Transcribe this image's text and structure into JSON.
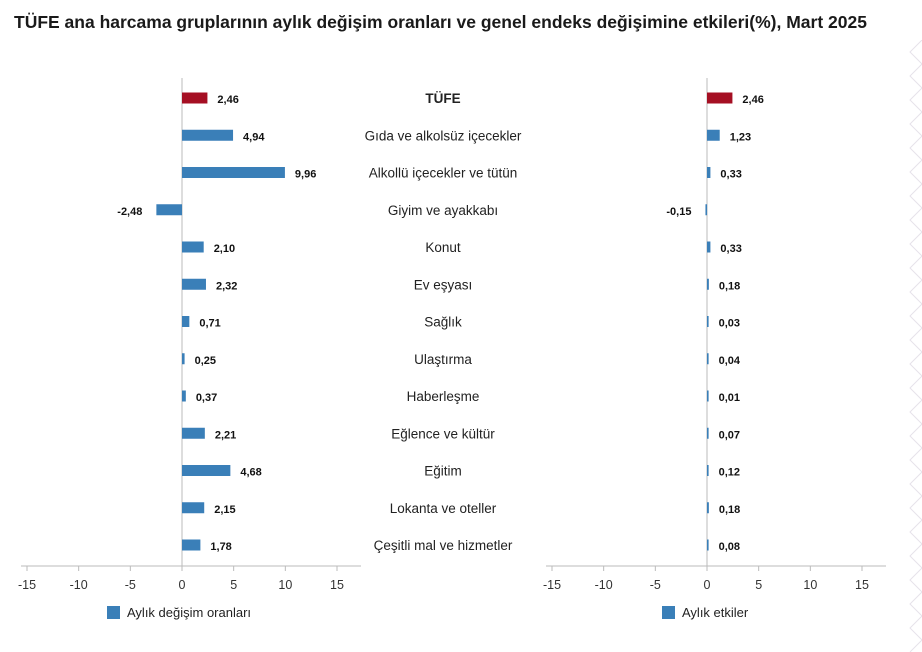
{
  "title": "TÜFE ana harcama gruplarının aylık değişim oranları ve genel endeks değişimine etkileri(%), Mart 2025",
  "colors": {
    "highlight": "#a50f23",
    "bar": "#3a7fb8",
    "axis": "#bbbbbb"
  },
  "chart_data": [
    {
      "type": "bar",
      "orientation": "horizontal",
      "categories": [
        "TÜFE",
        "Gıda ve alkolsüz içecekler",
        "Alkollü içecekler ve tütün",
        "Giyim ve ayakkabı",
        "Konut",
        "Ev eşyası",
        "Sağlık",
        "Ulaştırma",
        "Haberleşme",
        "Eğlence ve kültür",
        "Eğitim",
        "Lokanta ve oteller",
        "Çeşitli mal ve hizmetler"
      ],
      "series": [
        {
          "name": "Aylık değişim oranları",
          "values": [
            2.46,
            4.94,
            9.96,
            -2.48,
            2.1,
            2.32,
            0.71,
            0.25,
            0.37,
            2.21,
            4.68,
            2.15,
            1.78
          ],
          "labels": [
            "2,46",
            "4,94",
            "9,96",
            "-2,48",
            "2,10",
            "2,32",
            "0,71",
            "0,25",
            "0,37",
            "2,21",
            "4,68",
            "2,15",
            "1,78"
          ]
        }
      ],
      "xlim": [
        -15,
        15
      ],
      "xticks": [
        "-15",
        "-10",
        "-5",
        "0",
        "5",
        "10",
        "15"
      ],
      "legend": "bottom"
    },
    {
      "type": "bar",
      "orientation": "horizontal",
      "categories": [
        "TÜFE",
        "Gıda ve alkolsüz içecekler",
        "Alkollü içecekler ve tütün",
        "Giyim ve ayakkabı",
        "Konut",
        "Ev eşyası",
        "Sağlık",
        "Ulaştırma",
        "Haberleşme",
        "Eğlence ve kültür",
        "Eğitim",
        "Lokanta ve oteller",
        "Çeşitli mal ve hizmetler"
      ],
      "series": [
        {
          "name": "Aylık etkiler",
          "values": [
            2.46,
            1.23,
            0.33,
            -0.15,
            0.33,
            0.18,
            0.03,
            0.04,
            0.01,
            0.07,
            0.12,
            0.18,
            0.08
          ],
          "labels": [
            "2,46",
            "1,23",
            "0,33",
            "-0,15",
            "0,33",
            "0,18",
            "0,03",
            "0,04",
            "0,01",
            "0,07",
            "0,12",
            "0,18",
            "0,08"
          ]
        }
      ],
      "xlim": [
        -15,
        15
      ],
      "xticks": [
        "-15",
        "-10",
        "-5",
        "0",
        "5",
        "10",
        "15"
      ],
      "legend": "bottom"
    }
  ]
}
